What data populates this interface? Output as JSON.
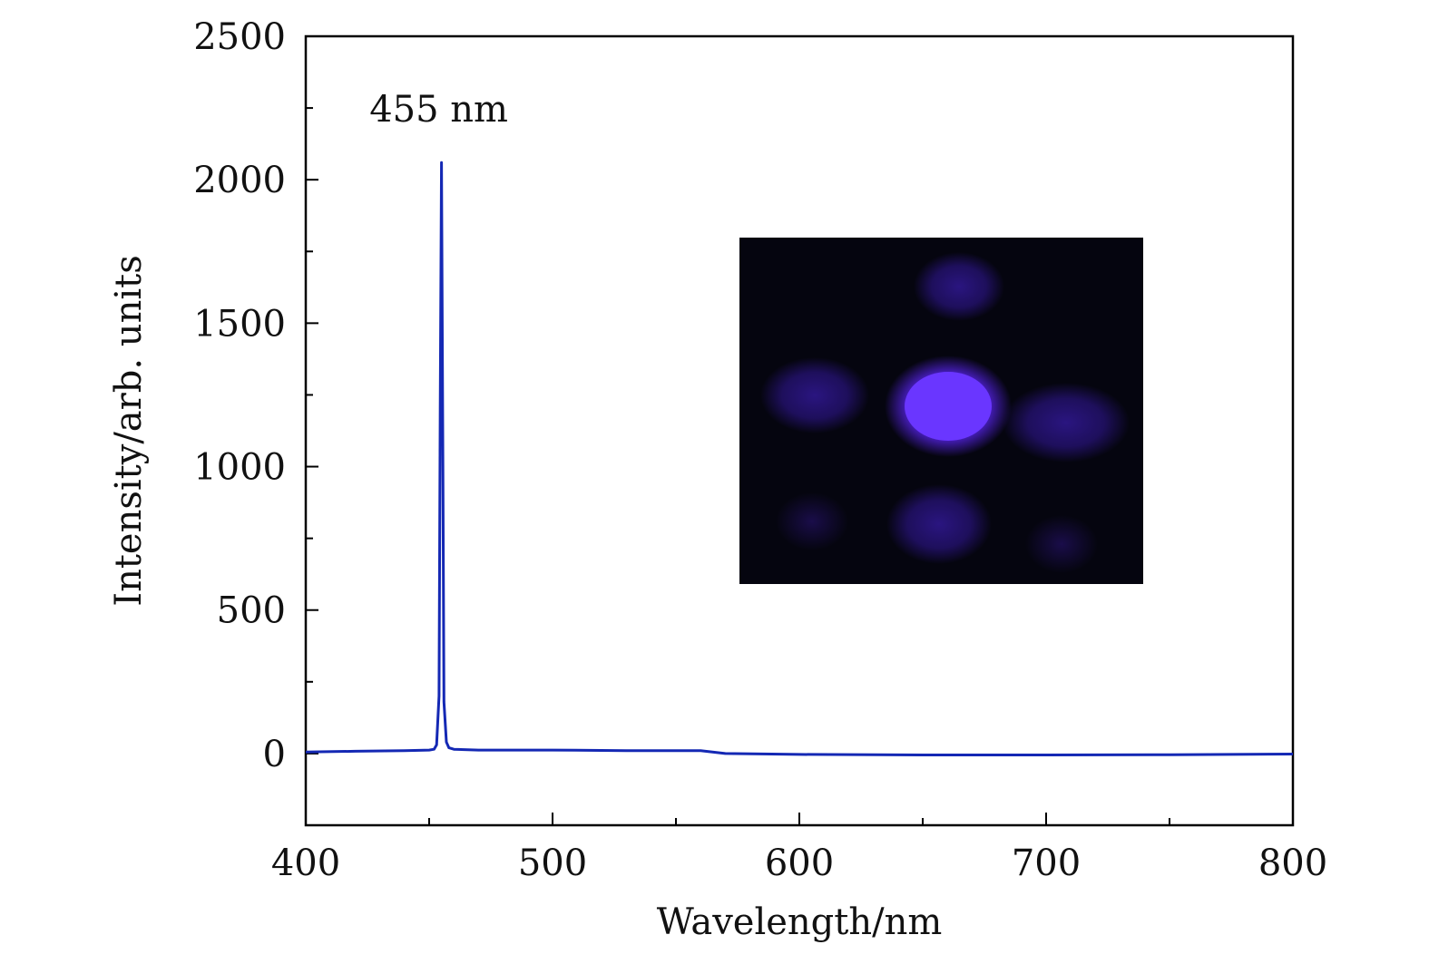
{
  "chart_data": {
    "type": "line",
    "xlabel": "Wavelength/nm",
    "ylabel": "Intensity/arb. units",
    "xlim": [
      400,
      800
    ],
    "ylim": [
      -250,
      2500
    ],
    "x_ticks": [
      400,
      500,
      600,
      700,
      800
    ],
    "y_ticks": [
      0,
      500,
      1000,
      1500,
      2000,
      2500
    ],
    "grid": false,
    "series": [
      {
        "color": "#1428b4",
        "x": [
          400,
          420,
          440,
          450,
          452,
          453,
          454,
          454.5,
          455,
          455.5,
          456,
          457,
          458,
          460,
          470,
          500,
          530,
          560,
          570,
          600,
          650,
          700,
          750,
          800
        ],
        "y": [
          5,
          8,
          10,
          12,
          15,
          30,
          200,
          1200,
          2060,
          1100,
          180,
          40,
          20,
          15,
          12,
          12,
          10,
          10,
          0,
          -3,
          -5,
          -5,
          -4,
          -2
        ]
      }
    ],
    "annotations": [
      {
        "text": "455 nm",
        "x": 455,
        "y": 2060
      }
    ],
    "inset": {
      "type": "image",
      "description_icon": "blue-laser-spot-pattern",
      "background": "#05050f",
      "spot_color": "#5a2bff"
    }
  }
}
